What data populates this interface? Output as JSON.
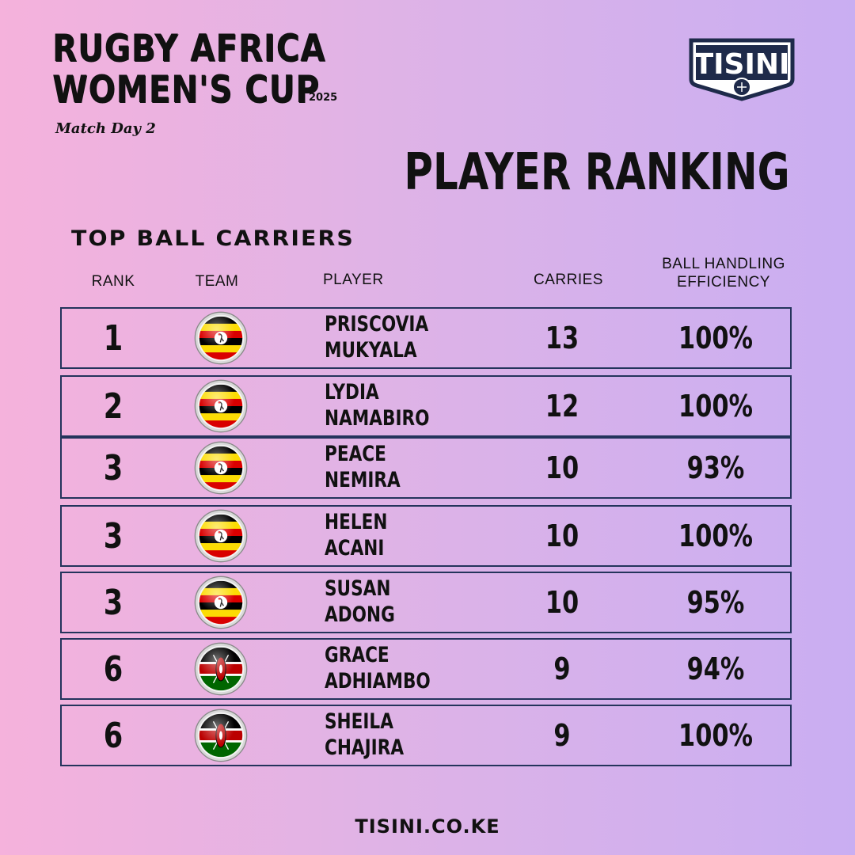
{
  "header": {
    "title_line1": "RUGBY AFRICA",
    "title_line2": "WOMEN'S CUP",
    "year": "2025",
    "match_day": "Match Day 2",
    "logo_text": "TISINI"
  },
  "heading": "PLAYER RANKING",
  "subheading": "TOP BALL CARRIERS",
  "columns": {
    "rank": "RANK",
    "team": "TEAM",
    "player": "PLAYER",
    "carries": "CARRIES",
    "efficiency_line1": "BALL HANDLING",
    "efficiency_line2": "EFFICIENCY"
  },
  "rows": [
    {
      "rank": "1",
      "team_flag": "uganda-flag-icon",
      "first": "PRISCOVIA",
      "last": "MUKYALA",
      "carries": "13",
      "efficiency": "100%"
    },
    {
      "rank": "2",
      "team_flag": "uganda-flag-icon",
      "first": "LYDIA",
      "last": "NAMABIRO",
      "carries": "12",
      "efficiency": "100%"
    },
    {
      "rank": "3",
      "team_flag": "uganda-flag-icon",
      "first": "PEACE",
      "last": "NEMIRA",
      "carries": "10",
      "efficiency": "93%"
    },
    {
      "rank": "3",
      "team_flag": "uganda-flag-icon",
      "first": "HELEN",
      "last": "ACANI",
      "carries": "10",
      "efficiency": "100%"
    },
    {
      "rank": "3",
      "team_flag": "uganda-flag-icon",
      "first": "SUSAN",
      "last": "ADONG",
      "carries": "10",
      "efficiency": "95%"
    },
    {
      "rank": "6",
      "team_flag": "kenya-flag-icon",
      "first": "GRACE",
      "last": "ADHIAMBO",
      "carries": "9",
      "efficiency": "94%"
    },
    {
      "rank": "6",
      "team_flag": "kenya-flag-icon",
      "first": "SHEILA",
      "last": "CHAJIRA",
      "carries": "9",
      "efficiency": "100%"
    }
  ],
  "footer": {
    "website": "TISINI.CO.KE"
  },
  "colors": {
    "row_border": "#24345c",
    "logo_navy": "#1e2a4a"
  }
}
